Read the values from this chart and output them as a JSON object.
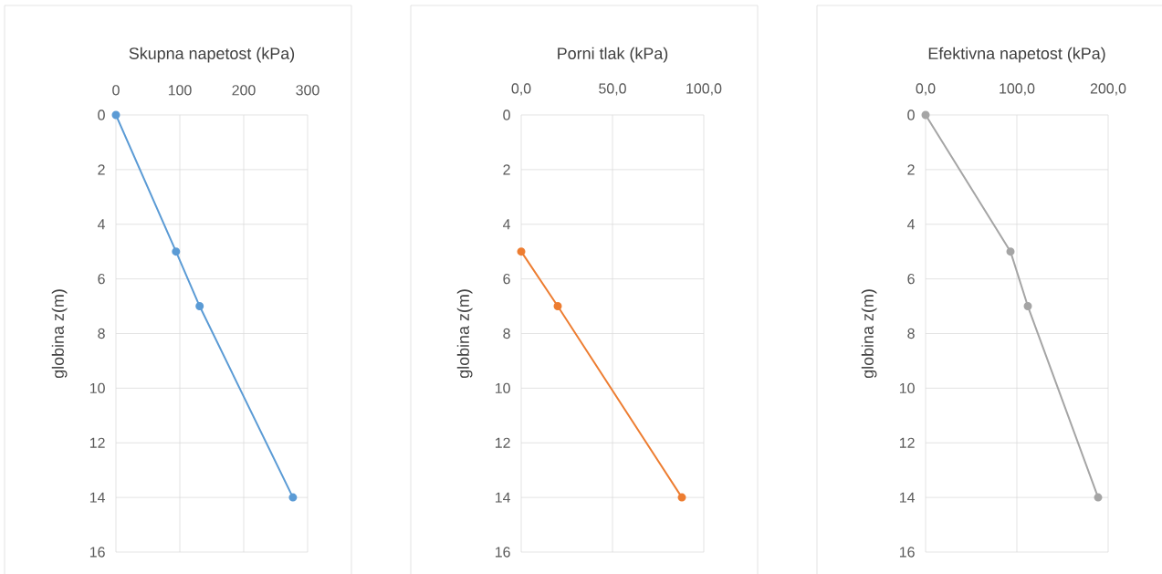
{
  "chart_data": [
    {
      "type": "line",
      "xlabel": "Skupna napetost (kPa)",
      "ylabel": "globina z(m)",
      "x": [
        0,
        94,
        131,
        277
      ],
      "series": [
        {
          "color": "#5b9bd5",
          "values": [
            0,
            5,
            7,
            14
          ]
        }
      ],
      "xlim": [
        0,
        300
      ],
      "xticks": [
        0,
        100,
        200,
        300
      ],
      "ylim": [
        16,
        0
      ],
      "yticks": [
        0,
        2,
        4,
        6,
        8,
        10,
        12,
        14,
        16
      ],
      "grid": true,
      "marker": "circle",
      "line_style": "solid"
    },
    {
      "type": "line",
      "xlabel": "Porni tlak (kPa)",
      "ylabel": "globina z(m)",
      "x": [
        0,
        20,
        88
      ],
      "series": [
        {
          "color": "#ed7d31",
          "values": [
            5,
            7,
            14
          ]
        }
      ],
      "xlim": [
        0,
        100
      ],
      "xticks": [
        {
          "value": 0,
          "label": "0,0"
        },
        {
          "value": 50,
          "label": "50,0"
        },
        {
          "value": 100,
          "label": "100,0"
        }
      ],
      "ylim": [
        16,
        0
      ],
      "yticks": [
        0,
        2,
        4,
        6,
        8,
        10,
        12,
        14,
        16
      ],
      "grid": true,
      "marker": "circle",
      "line_style": "solid"
    },
    {
      "type": "line",
      "xlabel": "Efektivna napetost (kPa)",
      "ylabel": "globina z(m)",
      "x": [
        0,
        93,
        112,
        189
      ],
      "series": [
        {
          "color": "#a5a5a5",
          "values": [
            0,
            5,
            7,
            14
          ]
        }
      ],
      "xlim": [
        0,
        200
      ],
      "xticks": [
        {
          "value": 0,
          "label": "0,0"
        },
        {
          "value": 100,
          "label": "100,0"
        },
        {
          "value": 200,
          "label": "200,0"
        }
      ],
      "ylim": [
        16,
        0
      ],
      "yticks": [
        0,
        2,
        4,
        6,
        8,
        10,
        12,
        14,
        16
      ],
      "grid": true,
      "marker": "circle",
      "line_style": "solid"
    }
  ]
}
